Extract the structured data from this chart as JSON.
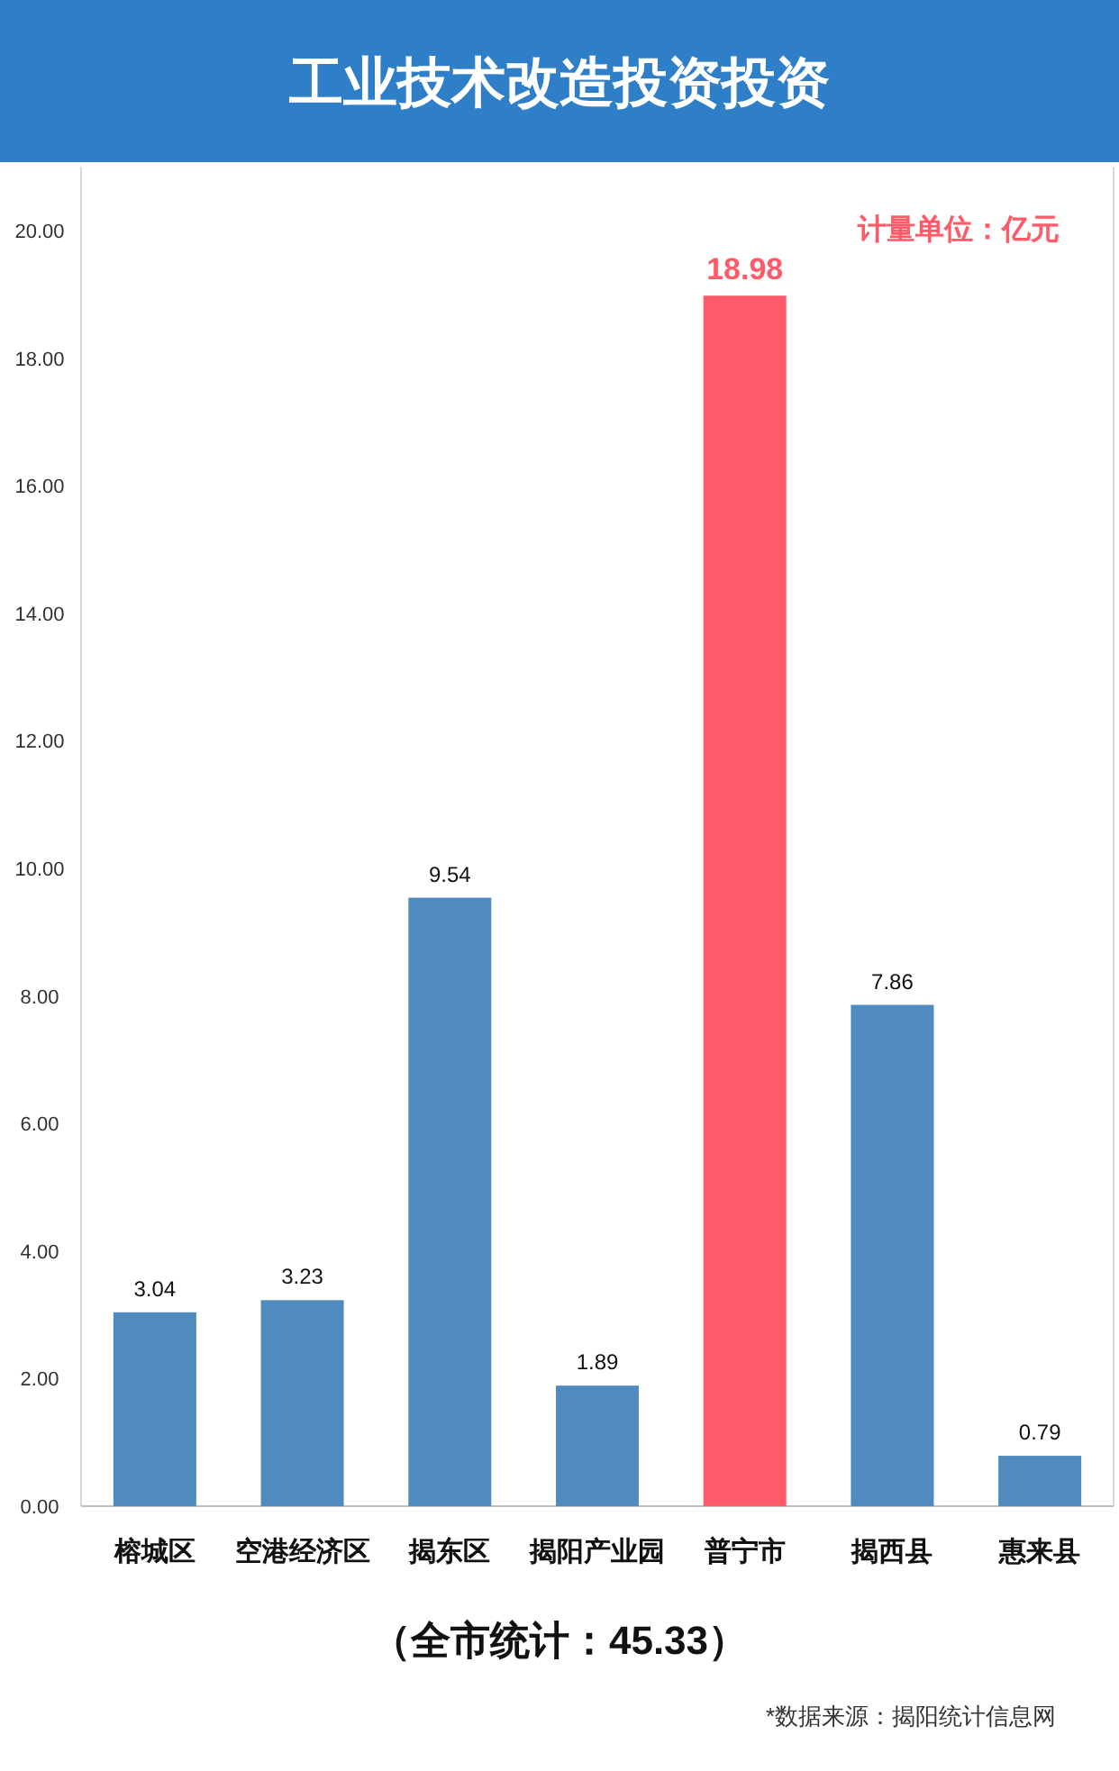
{
  "chart_data": {
    "type": "bar",
    "title": "工业技术改造投资投资",
    "categories": [
      "榕城区",
      "空港经济区",
      "揭东区",
      "揭阳产业园",
      "普宁市",
      "揭西县",
      "惠来县"
    ],
    "values": [
      3.04,
      3.23,
      9.54,
      1.89,
      18.98,
      7.86,
      0.79
    ],
    "colors": [
      "#4f8bbf",
      "#4f8bbf",
      "#4f8bbf",
      "#4f8bbf",
      "#ff5a6a",
      "#4f8bbf",
      "#4f8bbf"
    ],
    "ylim": [
      0,
      21
    ],
    "yticks": [
      {
        "value": 0,
        "label": "0.00"
      },
      {
        "value": 2,
        "label": "2.00"
      },
      {
        "value": 4,
        "label": "4.00"
      },
      {
        "value": 6,
        "label": "6.00"
      },
      {
        "value": 8,
        "label": "8.00"
      },
      {
        "value": 10,
        "label": "10.00"
      },
      {
        "value": 12,
        "label": "12.00"
      },
      {
        "value": 14,
        "label": "14.00"
      },
      {
        "value": 16,
        "label": "16.00"
      },
      {
        "value": 18,
        "label": "18.00"
      },
      {
        "value": 20,
        "label": "20.00"
      }
    ],
    "data_labels": true,
    "grid": false,
    "annotations": [
      "计量单位：亿元",
      "（全市统计：45.33）",
      "*数据来源：揭阳统计信息网"
    ]
  }
}
